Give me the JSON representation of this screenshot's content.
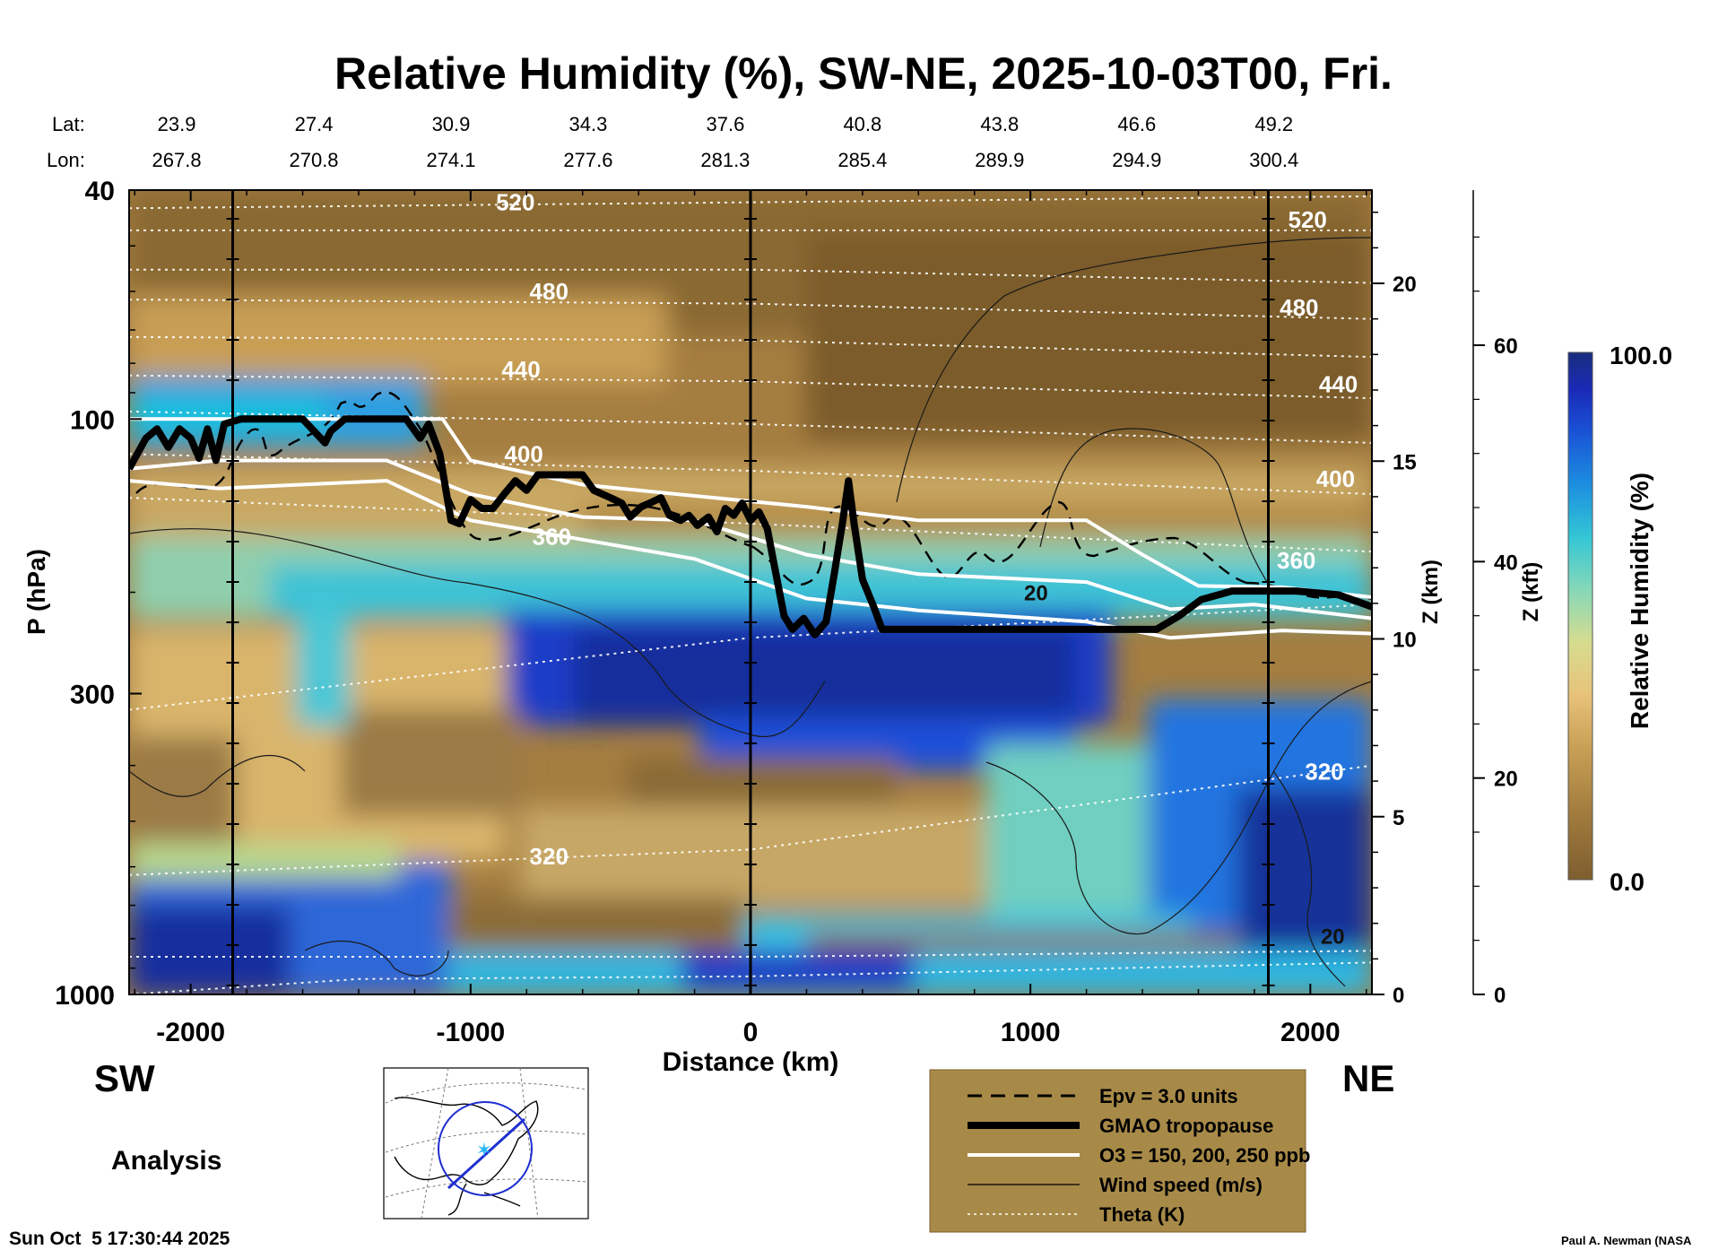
{
  "chart_data": {
    "type": "heatmap",
    "title": "Relative Humidity (%), SW-NE, 2025-10-03T00, Fri.",
    "xlabel": "Distance (km)",
    "ylabel": "P (hPa)",
    "z_km_label": "Z (km)",
    "z_kft_label": "Z (kft)",
    "colorbar_label": "Relative Humidity (%)",
    "colorbar_range": [
      0.0,
      100.0
    ],
    "colorbar_max_label": "100.0",
    "colorbar_min_label": "0.0",
    "xlim": [
      -2220,
      2220
    ],
    "ylim_hpa": [
      1000,
      40
    ],
    "x_ticks": [
      -2000,
      -1000,
      0,
      1000,
      2000
    ],
    "x_tick_labels": [
      "-2000",
      "-1000",
      "0",
      "1000",
      "2000"
    ],
    "p_ticks": [
      40,
      100,
      300,
      1000
    ],
    "p_tick_labels": [
      "40",
      "100",
      "300",
      "1000"
    ],
    "z_km_ticks": [
      0,
      5,
      10,
      15,
      20
    ],
    "z_km_tick_labels": [
      "0",
      "5",
      "10",
      "15",
      "20"
    ],
    "z_kft_ticks": [
      0,
      20,
      40,
      60
    ],
    "z_kft_tick_labels": [
      "0",
      "20",
      "40",
      "60"
    ],
    "lat_label": "Lat:",
    "lon_label": "Lon:",
    "lat_values": [
      "23.9",
      "27.4",
      "30.9",
      "34.3",
      "37.6",
      "40.8",
      "43.8",
      "46.6",
      "49.2"
    ],
    "lon_values": [
      "267.8",
      "270.8",
      "274.1",
      "277.6",
      "281.3",
      "285.4",
      "289.9",
      "294.9",
      "300.4"
    ],
    "station_distances": [
      -2050,
      -1560,
      -1070,
      -580,
      -90,
      400,
      890,
      1380,
      1870
    ],
    "reference_lines_km": [
      -1850,
      0,
      1850
    ],
    "theta_contour_labels": [
      {
        "text": "520",
        "x": -840,
        "p": 42
      },
      {
        "text": "480",
        "x": -720,
        "p": 60
      },
      {
        "text": "440",
        "x": -820,
        "p": 82
      },
      {
        "text": "400",
        "x": -810,
        "p": 115
      },
      {
        "text": "360",
        "x": -710,
        "p": 160
      },
      {
        "text": "320",
        "x": -720,
        "p": 575
      },
      {
        "text": "520",
        "x": 1990,
        "p": 45
      },
      {
        "text": "480",
        "x": 1960,
        "p": 64
      },
      {
        "text": "440",
        "x": 2100,
        "p": 87
      },
      {
        "text": "400",
        "x": 2090,
        "p": 127
      },
      {
        "text": "360",
        "x": 1950,
        "p": 176
      },
      {
        "text": "320",
        "x": 2050,
        "p": 410
      }
    ],
    "wind_contour_labels": [
      {
        "text": "20",
        "x": 1020,
        "p": 200
      },
      {
        "text": "20",
        "x": 2080,
        "p": 790
      }
    ],
    "tropopause_hpa": [
      {
        "x": -2220,
        "p": 122
      },
      {
        "x": -2160,
        "p": 108
      },
      {
        "x": -2120,
        "p": 104
      },
      {
        "x": -2080,
        "p": 112
      },
      {
        "x": -2040,
        "p": 104
      },
      {
        "x": -2000,
        "p": 108
      },
      {
        "x": -1970,
        "p": 117
      },
      {
        "x": -1940,
        "p": 104
      },
      {
        "x": -1910,
        "p": 118
      },
      {
        "x": -1880,
        "p": 102
      },
      {
        "x": -1820,
        "p": 100
      },
      {
        "x": -1600,
        "p": 100
      },
      {
        "x": -1520,
        "p": 110
      },
      {
        "x": -1500,
        "p": 105
      },
      {
        "x": -1450,
        "p": 100
      },
      {
        "x": -1230,
        "p": 100
      },
      {
        "x": -1180,
        "p": 108
      },
      {
        "x": -1150,
        "p": 102
      },
      {
        "x": -1110,
        "p": 115
      },
      {
        "x": -1070,
        "p": 150
      },
      {
        "x": -1040,
        "p": 152
      },
      {
        "x": -1000,
        "p": 138
      },
      {
        "x": -960,
        "p": 143
      },
      {
        "x": -920,
        "p": 143
      },
      {
        "x": -880,
        "p": 135
      },
      {
        "x": -840,
        "p": 128
      },
      {
        "x": -800,
        "p": 133
      },
      {
        "x": -760,
        "p": 125
      },
      {
        "x": -600,
        "p": 125
      },
      {
        "x": -560,
        "p": 133
      },
      {
        "x": -500,
        "p": 137
      },
      {
        "x": -460,
        "p": 140
      },
      {
        "x": -430,
        "p": 148
      },
      {
        "x": -390,
        "p": 142
      },
      {
        "x": -360,
        "p": 140
      },
      {
        "x": -320,
        "p": 137
      },
      {
        "x": -290,
        "p": 147
      },
      {
        "x": -250,
        "p": 150
      },
      {
        "x": -220,
        "p": 147
      },
      {
        "x": -190,
        "p": 153
      },
      {
        "x": -150,
        "p": 148
      },
      {
        "x": -120,
        "p": 157
      },
      {
        "x": -90,
        "p": 143
      },
      {
        "x": -60,
        "p": 147
      },
      {
        "x": -30,
        "p": 140
      },
      {
        "x": 0,
        "p": 150
      },
      {
        "x": 30,
        "p": 145
      },
      {
        "x": 60,
        "p": 155
      },
      {
        "x": 90,
        "p": 185
      },
      {
        "x": 120,
        "p": 220
      },
      {
        "x": 150,
        "p": 232
      },
      {
        "x": 190,
        "p": 222
      },
      {
        "x": 230,
        "p": 237
      },
      {
        "x": 270,
        "p": 225
      },
      {
        "x": 300,
        "p": 185
      },
      {
        "x": 330,
        "p": 150
      },
      {
        "x": 350,
        "p": 128
      },
      {
        "x": 370,
        "p": 152
      },
      {
        "x": 400,
        "p": 190
      },
      {
        "x": 440,
        "p": 212
      },
      {
        "x": 470,
        "p": 232
      },
      {
        "x": 1450,
        "p": 232
      },
      {
        "x": 1530,
        "p": 220
      },
      {
        "x": 1610,
        "p": 206
      },
      {
        "x": 1720,
        "p": 199
      },
      {
        "x": 1950,
        "p": 199
      },
      {
        "x": 2100,
        "p": 202
      },
      {
        "x": 2220,
        "p": 212
      }
    ],
    "o3_isolines_hpa": [
      {
        "name": "150 ppb",
        "points": [
          {
            "x": -2220,
            "p": 100
          },
          {
            "x": -1700,
            "p": 100
          },
          {
            "x": -1100,
            "p": 100
          },
          {
            "x": -1000,
            "p": 118
          },
          {
            "x": -600,
            "p": 130
          },
          {
            "x": -200,
            "p": 136
          },
          {
            "x": 200,
            "p": 142
          },
          {
            "x": 600,
            "p": 150
          },
          {
            "x": 1200,
            "p": 150
          },
          {
            "x": 1400,
            "p": 172
          },
          {
            "x": 1600,
            "p": 195
          },
          {
            "x": 1900,
            "p": 196
          },
          {
            "x": 2220,
            "p": 204
          }
        ]
      },
      {
        "name": "200 ppb",
        "points": [
          {
            "x": -2220,
            "p": 122
          },
          {
            "x": -1900,
            "p": 118
          },
          {
            "x": -1300,
            "p": 118
          },
          {
            "x": -1000,
            "p": 135
          },
          {
            "x": -600,
            "p": 148
          },
          {
            "x": -200,
            "p": 150
          },
          {
            "x": 200,
            "p": 172
          },
          {
            "x": 600,
            "p": 186
          },
          {
            "x": 1200,
            "p": 192
          },
          {
            "x": 1500,
            "p": 214
          },
          {
            "x": 1800,
            "p": 210
          },
          {
            "x": 2220,
            "p": 222
          }
        ]
      },
      {
        "name": "250 ppb",
        "points": [
          {
            "x": -2220,
            "p": 128
          },
          {
            "x": -1900,
            "p": 132
          },
          {
            "x": -1300,
            "p": 128
          },
          {
            "x": -1000,
            "p": 150
          },
          {
            "x": -600,
            "p": 162
          },
          {
            "x": -200,
            "p": 175
          },
          {
            "x": 200,
            "p": 205
          },
          {
            "x": 600,
            "p": 215
          },
          {
            "x": 1200,
            "p": 225
          },
          {
            "x": 1500,
            "p": 240
          },
          {
            "x": 1900,
            "p": 233
          },
          {
            "x": 2220,
            "p": 236
          }
        ]
      }
    ],
    "theta_isentropes_hpa": [
      {
        "theta": "520",
        "points": [
          {
            "x": -2220,
            "p": 43
          },
          {
            "x": 0,
            "p": 42
          },
          {
            "x": 2220,
            "p": 41
          }
        ]
      },
      {
        "theta": "500",
        "points": [
          {
            "x": -2220,
            "p": 47
          },
          {
            "x": 0,
            "p": 47
          },
          {
            "x": 2220,
            "p": 47
          }
        ]
      },
      {
        "theta": "480",
        "points": [
          {
            "x": -2220,
            "p": 55
          },
          {
            "x": 0,
            "p": 55
          },
          {
            "x": 2220,
            "p": 58
          }
        ]
      },
      {
        "theta": "460",
        "points": [
          {
            "x": -2220,
            "p": 62
          },
          {
            "x": 0,
            "p": 63
          },
          {
            "x": 2220,
            "p": 67
          }
        ]
      },
      {
        "theta": "440",
        "points": [
          {
            "x": -2220,
            "p": 72
          },
          {
            "x": 0,
            "p": 73
          },
          {
            "x": 2220,
            "p": 78
          }
        ]
      },
      {
        "theta": "420",
        "points": [
          {
            "x": -2220,
            "p": 84
          },
          {
            "x": 0,
            "p": 86
          },
          {
            "x": 2220,
            "p": 92
          }
        ]
      },
      {
        "theta": "400",
        "points": [
          {
            "x": -2220,
            "p": 97
          },
          {
            "x": 0,
            "p": 102
          },
          {
            "x": 2220,
            "p": 110
          }
        ]
      },
      {
        "theta": "380",
        "points": [
          {
            "x": -2220,
            "p": 115
          },
          {
            "x": 0,
            "p": 123
          },
          {
            "x": 2220,
            "p": 135
          }
        ]
      },
      {
        "theta": "360",
        "points": [
          {
            "x": -2220,
            "p": 137
          },
          {
            "x": 0,
            "p": 152
          },
          {
            "x": 2220,
            "p": 170
          }
        ]
      },
      {
        "theta": "340",
        "points": [
          {
            "x": -2220,
            "p": 320
          },
          {
            "x": 0,
            "p": 240
          },
          {
            "x": 2220,
            "p": 210
          }
        ]
      },
      {
        "theta": "320",
        "points": [
          {
            "x": -2220,
            "p": 620
          },
          {
            "x": 0,
            "p": 560
          },
          {
            "x": 2220,
            "p": 400
          }
        ]
      },
      {
        "theta": "310",
        "points": [
          {
            "x": -2220,
            "p": 860
          },
          {
            "x": 0,
            "p": 860
          },
          {
            "x": 2220,
            "p": 840
          }
        ]
      },
      {
        "theta": "300",
        "points": [
          {
            "x": -2220,
            "p": 1000
          },
          {
            "x": -1400,
            "p": 940
          },
          {
            "x": 0,
            "p": 930
          },
          {
            "x": 2220,
            "p": 880
          }
        ]
      }
    ],
    "legend": [
      {
        "style": "dashed",
        "label": "Epv = 3.0 units"
      },
      {
        "style": "thick",
        "label": "GMAO tropopause"
      },
      {
        "style": "white",
        "label": "O3 = 150, 200, 250 ppb"
      },
      {
        "style": "thin",
        "label": "Wind speed (m/s)"
      },
      {
        "style": "dotted",
        "label": "Theta (K)"
      }
    ],
    "colors": {
      "dry": "#8c6a35",
      "moist": "#19308a",
      "legend_bg": "#a88a48"
    }
  },
  "annotations": {
    "left_direction": "SW",
    "right_direction": "NE",
    "product": "Analysis",
    "timestamp": "Sun Oct  5 17:30:44 2025",
    "credit": "Paul A. Newman (NASA"
  }
}
